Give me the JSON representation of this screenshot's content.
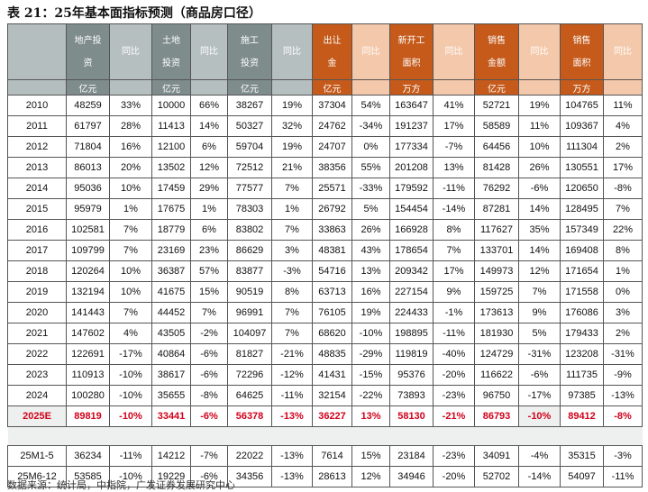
{
  "title": "表 21：25年基本面指标预测（商品房口径）",
  "header": {
    "columns": [
      "",
      "地产投资",
      "同比",
      "土地投资",
      "同比",
      "施工投资",
      "同比",
      "出让金",
      "同比",
      "新开工面积",
      "同比",
      "销售金额",
      "同比",
      "销售面积",
      "同比"
    ],
    "units": [
      "",
      "亿元",
      "",
      "亿元",
      "",
      "亿元",
      "",
      "亿元",
      "",
      "万方",
      "",
      "亿元",
      "",
      "万方",
      ""
    ]
  },
  "colors": {
    "dark_gray": "#7f8c8c",
    "light_gray": "#b6bfbf",
    "orange": "#c55a1b",
    "peach": "#f4c8aa",
    "estimate_red": "#d0021b"
  },
  "rows": [
    [
      "2010",
      "48259",
      "33%",
      "10000",
      "66%",
      "38267",
      "19%",
      "37304",
      "54%",
      "163647",
      "41%",
      "52721",
      "19%",
      "104765",
      "11%"
    ],
    [
      "2011",
      "61797",
      "28%",
      "11413",
      "14%",
      "50327",
      "32%",
      "24762",
      "-34%",
      "191237",
      "17%",
      "58589",
      "11%",
      "109367",
      "4%"
    ],
    [
      "2012",
      "71804",
      "16%",
      "12100",
      "6%",
      "59704",
      "19%",
      "24707",
      "0%",
      "177334",
      "-7%",
      "64456",
      "10%",
      "111304",
      "2%"
    ],
    [
      "2013",
      "86013",
      "20%",
      "13502",
      "12%",
      "72512",
      "21%",
      "38356",
      "55%",
      "201208",
      "13%",
      "81428",
      "26%",
      "130551",
      "17%"
    ],
    [
      "2014",
      "95036",
      "10%",
      "17459",
      "29%",
      "77577",
      "7%",
      "25571",
      "-33%",
      "179592",
      "-11%",
      "76292",
      "-6%",
      "120650",
      "-8%"
    ],
    [
      "2015",
      "95979",
      "1%",
      "17675",
      "1%",
      "78303",
      "1%",
      "26792",
      "5%",
      "154454",
      "-14%",
      "87281",
      "14%",
      "128495",
      "7%"
    ],
    [
      "2016",
      "102581",
      "7%",
      "18779",
      "6%",
      "83802",
      "7%",
      "33863",
      "26%",
      "166928",
      "8%",
      "117627",
      "35%",
      "157349",
      "22%"
    ],
    [
      "2017",
      "109799",
      "7%",
      "23169",
      "23%",
      "86629",
      "3%",
      "48381",
      "43%",
      "178654",
      "7%",
      "133701",
      "14%",
      "169408",
      "8%"
    ],
    [
      "2018",
      "120264",
      "10%",
      "36387",
      "57%",
      "83877",
      "-3%",
      "54716",
      "13%",
      "209342",
      "17%",
      "149973",
      "12%",
      "171654",
      "1%"
    ],
    [
      "2019",
      "132194",
      "10%",
      "41675",
      "15%",
      "90519",
      "8%",
      "63713",
      "16%",
      "227154",
      "9%",
      "159725",
      "7%",
      "171558",
      "0%"
    ],
    [
      "2020",
      "141443",
      "7%",
      "44452",
      "7%",
      "96991",
      "7%",
      "76105",
      "19%",
      "224433",
      "-1%",
      "173613",
      "9%",
      "176086",
      "3%"
    ],
    [
      "2021",
      "147602",
      "4%",
      "43505",
      "-2%",
      "104097",
      "7%",
      "68620",
      "-10%",
      "198895",
      "-11%",
      "181930",
      "5%",
      "179433",
      "2%"
    ],
    [
      "2022",
      "122691",
      "-17%",
      "40864",
      "-6%",
      "81827",
      "-21%",
      "48835",
      "-29%",
      "119819",
      "-40%",
      "124729",
      "-31%",
      "123208",
      "-31%"
    ],
    [
      "2023",
      "110913",
      "-10%",
      "38617",
      "-6%",
      "72296",
      "-12%",
      "41431",
      "-15%",
      "95376",
      "-20%",
      "116622",
      "-6%",
      "111735",
      "-9%"
    ],
    [
      "2024",
      "100280",
      "-10%",
      "35655",
      "-8%",
      "64625",
      "-11%",
      "32154",
      "-22%",
      "73893",
      "-23%",
      "96750",
      "-17%",
      "97385",
      "-13%"
    ]
  ],
  "estimate_row": [
    "2025E",
    "89819",
    "-10%",
    "33441",
    "-6%",
    "56378",
    "-13%",
    "36227",
    "13%",
    "58130",
    "-21%",
    "86793",
    "-10%",
    "89412",
    "-8%"
  ],
  "split_rows": [
    [
      "25M1-5",
      "36234",
      "-11%",
      "14212",
      "-7%",
      "22022",
      "-13%",
      "7614",
      "15%",
      "23184",
      "-23%",
      "34091",
      "-4%",
      "35315",
      "-3%"
    ],
    [
      "25M6-12",
      "53585",
      "-10%",
      "19229",
      "-6%",
      "34356",
      "-13%",
      "28613",
      "12%",
      "34946",
      "-20%",
      "52702",
      "-14%",
      "54097",
      "-11%"
    ]
  ],
  "source": "数据来源：统计局，中指院，广发证券发展研究中心"
}
